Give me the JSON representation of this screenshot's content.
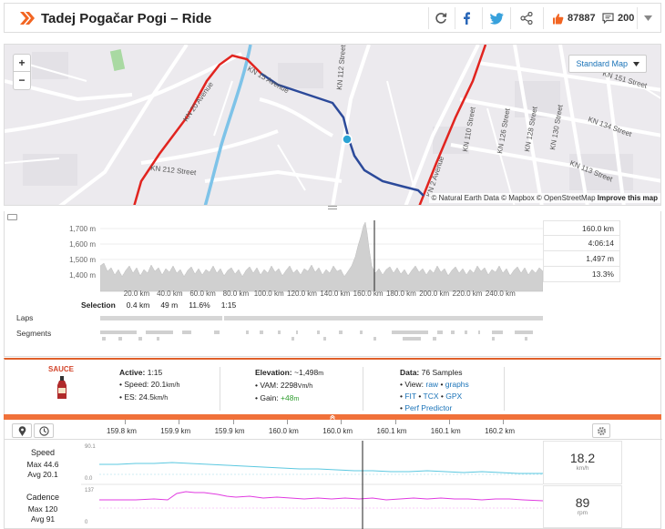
{
  "header": {
    "title": "Tadej Pogačar Pogi – Ride",
    "kudos_count": "87887",
    "comment_count": "200"
  },
  "map": {
    "zoom_in": "+",
    "zoom_out": "−",
    "map_type": "Standard Map",
    "attribution_prefix": "© Natural Earth Data © Mapbox © OpenStreetMap ",
    "attribution_link": "Improve this map",
    "streets": [
      {
        "name": "KN 20 Avenue"
      },
      {
        "name": "KN 15 Avenue"
      },
      {
        "name": "KN 112 Street"
      },
      {
        "name": "KN 212 Street"
      },
      {
        "name": "KN 2 Avenue"
      },
      {
        "name": "KN 110 Street"
      },
      {
        "name": "KN 126 Street"
      },
      {
        "name": "KN 128 Street"
      },
      {
        "name": "KN 130 Street"
      },
      {
        "name": "KN 134 Street"
      },
      {
        "name": "KN 113 Street"
      },
      {
        "name": "KN 151 Street"
      }
    ]
  },
  "elevation": {
    "y_labels": [
      "1,700 m",
      "1,600 m",
      "1,500 m",
      "1,400 m"
    ],
    "x_labels": [
      "20.0 km",
      "40.0 km",
      "60.0 km",
      "80.0 km",
      "100.0 km",
      "120.0 km",
      "140.0 km",
      "160.0 km",
      "180.0 km",
      "200.0 km",
      "220.0 km",
      "240.0 km"
    ],
    "stats": [
      "160.0 km",
      "4:06:14",
      "1,497 m",
      "13.3%"
    ],
    "selection": {
      "label": "Selection",
      "distance": "0.4 km",
      "elevation": "49 m",
      "grade": "11.6%",
      "time": "1:15"
    },
    "laps_label": "Laps",
    "segments_label": "Segments"
  },
  "sauce": {
    "logo": "SAUCE",
    "active": {
      "title": "Active:",
      "value": "1:15",
      "speed_label": "Speed:",
      "speed": "20.1",
      "speed_unit": "km/h",
      "es_label": "ES:",
      "es": "24.5",
      "es_unit": "km/h"
    },
    "elevation": {
      "title": "Elevation:",
      "value": "~1,498",
      "value_unit": "m",
      "vam_label": "VAM:",
      "vam": "2298",
      "vam_unit": "Vm/h",
      "gain_label": "Gain:",
      "gain": "+48",
      "gain_unit": "m"
    },
    "data": {
      "title": "Data:",
      "value": "76 Samples",
      "view_label": "View:",
      "raw": "raw",
      "graphs": "graphs",
      "fit": "FIT",
      "tcx": "TCX",
      "gpx": "GPX",
      "perf": "Perf Predictor"
    }
  },
  "streams": {
    "ticks": [
      "159.8 km",
      "159.9 km",
      "159.9 km",
      "160.0 km",
      "160.0 km",
      "160.1 km",
      "160.1 km",
      "160.2 km"
    ],
    "speed": {
      "name": "Speed",
      "max": "Max 44.6",
      "avg": "Avg 20.1",
      "value": "18.2",
      "unit": "km/h",
      "axis_top": "90.1",
      "axis_bottom": "0.0"
    },
    "cadence": {
      "name": "Cadence",
      "max": "Max 120",
      "avg": "Avg 91",
      "value": "89",
      "unit": "rpm",
      "axis_top": "137",
      "axis_bottom": "0"
    }
  },
  "colors": {
    "accent": "#f0713a",
    "route_blue": "#2c4a9a",
    "route_red": "#e1241f",
    "speed_line": "#5bc8e0",
    "cadence_line": "#e03ae0"
  }
}
